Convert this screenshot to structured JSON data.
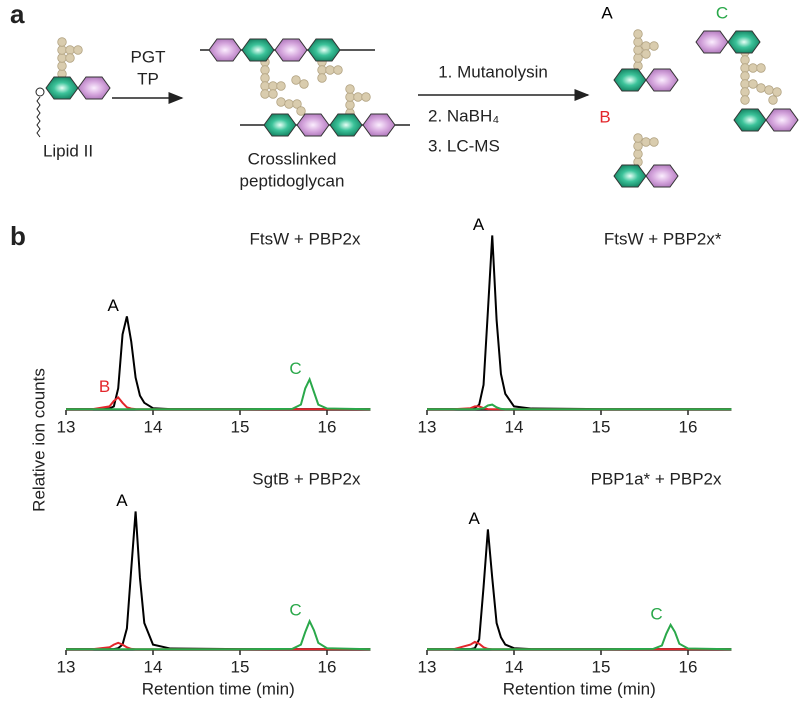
{
  "figure": {
    "panel_a": {
      "label": "a",
      "arrow1_top": "PGT",
      "arrow1_bottom": "TP",
      "lipid": "Lipid II",
      "product_line1": "Crosslinked",
      "product_line2": "peptidoglycan",
      "steps": [
        "1. Mutanolysin",
        "2. NaBH₄",
        "3. LC-MS"
      ],
      "fragments": [
        {
          "text": "A",
          "color": "#000000"
        },
        {
          "text": "C",
          "color": "#2aa84a"
        },
        {
          "text": "B",
          "color": "#e3262b"
        }
      ]
    },
    "panel_b": {
      "label": "b",
      "y_label": "Relative ion counts"
    }
  },
  "chart_data": [
    {
      "type": "line",
      "title": "FtsW + PBP2x",
      "xlim": [
        13,
        16.5
      ],
      "xticks": [
        13,
        14,
        15,
        16
      ],
      "ylim": [
        0,
        1
      ],
      "x": [
        13,
        13.3,
        13.5,
        13.55,
        13.6,
        13.65,
        13.7,
        13.75,
        13.8,
        13.85,
        13.9,
        14.0,
        14.2,
        15.0,
        15.6,
        15.7,
        15.75,
        15.8,
        15.85,
        15.9,
        16.0,
        16.5
      ],
      "series": [
        {
          "name": "A",
          "color": "#000000",
          "values": [
            0.005,
            0.005,
            0.008,
            0.02,
            0.12,
            0.42,
            0.52,
            0.38,
            0.18,
            0.08,
            0.04,
            0.01,
            0.005,
            0.005,
            0.005,
            0.005,
            0.005,
            0.005,
            0.005,
            0.005,
            0.005,
            0.005
          ]
        },
        {
          "name": "B",
          "color": "#e3262b",
          "values": [
            0.004,
            0.004,
            0.02,
            0.05,
            0.07,
            0.04,
            0.015,
            0.008,
            0.005,
            0.004,
            0.004,
            0.004,
            0.004,
            0.004,
            0.004,
            0.004,
            0.004,
            0.004,
            0.004,
            0.004,
            0.004,
            0.004
          ]
        },
        {
          "name": "C",
          "color": "#2aa84a",
          "values": [
            0.004,
            0.004,
            0.004,
            0.004,
            0.004,
            0.004,
            0.004,
            0.004,
            0.004,
            0.004,
            0.004,
            0.004,
            0.004,
            0.004,
            0.006,
            0.03,
            0.12,
            0.17,
            0.1,
            0.03,
            0.008,
            0.004
          ]
        }
      ]
    },
    {
      "type": "line",
      "title": "FtsW + PBP2x*",
      "xlim": [
        13,
        16.5
      ],
      "xticks": [
        13,
        14,
        15,
        16
      ],
      "ylim": [
        0,
        1
      ],
      "x": [
        13,
        13.3,
        13.5,
        13.55,
        13.6,
        13.65,
        13.7,
        13.75,
        13.8,
        13.85,
        13.9,
        14.0,
        14.2,
        15.0,
        15.6,
        15.7,
        15.75,
        15.8,
        15.85,
        15.9,
        16.0,
        16.5
      ],
      "series": [
        {
          "name": "A",
          "color": "#000000",
          "values": [
            0.005,
            0.005,
            0.005,
            0.01,
            0.03,
            0.14,
            0.55,
            0.97,
            0.5,
            0.2,
            0.09,
            0.02,
            0.008,
            0.005,
            0.005,
            0.005,
            0.005,
            0.005,
            0.005,
            0.005,
            0.005,
            0.005
          ]
        },
        {
          "color": "#e3262b",
          "values": [
            0.004,
            0.004,
            0.01,
            0.02,
            0.02,
            0.01,
            0.005,
            0.004,
            0.004,
            0.004,
            0.004,
            0.004,
            0.004,
            0.004,
            0.004,
            0.004,
            0.004,
            0.004,
            0.004,
            0.004,
            0.004,
            0.004
          ]
        },
        {
          "color": "#2aa84a",
          "values": [
            0.004,
            0.004,
            0.004,
            0.004,
            0.006,
            0.01,
            0.025,
            0.03,
            0.015,
            0.006,
            0.004,
            0.004,
            0.004,
            0.004,
            0.004,
            0.004,
            0.004,
            0.004,
            0.004,
            0.004,
            0.004,
            0.004
          ]
        }
      ]
    },
    {
      "type": "line",
      "title": "SgtB + PBP2x",
      "x_label": "Retention time (min)",
      "xlim": [
        13,
        16.5
      ],
      "xticks": [
        13,
        14,
        15,
        16
      ],
      "ylim": [
        0,
        1
      ],
      "x": [
        13,
        13.3,
        13.5,
        13.55,
        13.6,
        13.65,
        13.7,
        13.75,
        13.8,
        13.85,
        13.9,
        14.0,
        14.2,
        15.0,
        15.6,
        15.7,
        15.75,
        15.8,
        15.85,
        15.9,
        16.0,
        16.5
      ],
      "series": [
        {
          "name": "A",
          "color": "#000000",
          "values": [
            0.005,
            0.005,
            0.005,
            0.005,
            0.01,
            0.03,
            0.12,
            0.45,
            0.77,
            0.4,
            0.15,
            0.03,
            0.008,
            0.005,
            0.005,
            0.005,
            0.005,
            0.005,
            0.005,
            0.005,
            0.005,
            0.005
          ]
        },
        {
          "color": "#e3262b",
          "values": [
            0.004,
            0.004,
            0.015,
            0.03,
            0.04,
            0.03,
            0.015,
            0.006,
            0.004,
            0.004,
            0.004,
            0.004,
            0.004,
            0.004,
            0.004,
            0.004,
            0.004,
            0.004,
            0.004,
            0.004,
            0.004,
            0.004
          ]
        },
        {
          "name": "C",
          "color": "#2aa84a",
          "values": [
            0.004,
            0.004,
            0.004,
            0.004,
            0.004,
            0.004,
            0.004,
            0.004,
            0.004,
            0.004,
            0.004,
            0.004,
            0.004,
            0.004,
            0.006,
            0.03,
            0.1,
            0.16,
            0.11,
            0.04,
            0.01,
            0.004
          ]
        }
      ]
    },
    {
      "type": "line",
      "title": "PBP1a* + PBP2x",
      "x_label": "Retention time (min)",
      "xlim": [
        13,
        16.5
      ],
      "xticks": [
        13,
        14,
        15,
        16
      ],
      "ylim": [
        0,
        1
      ],
      "x": [
        13,
        13.3,
        13.5,
        13.55,
        13.6,
        13.65,
        13.7,
        13.75,
        13.8,
        13.85,
        13.9,
        14.0,
        14.2,
        15.0,
        15.6,
        15.7,
        15.75,
        15.8,
        15.85,
        15.9,
        16.0,
        16.5
      ],
      "series": [
        {
          "name": "A",
          "color": "#000000",
          "values": [
            0.005,
            0.005,
            0.005,
            0.01,
            0.06,
            0.35,
            0.67,
            0.4,
            0.15,
            0.07,
            0.03,
            0.01,
            0.005,
            0.005,
            0.005,
            0.005,
            0.005,
            0.005,
            0.005,
            0.005,
            0.005,
            0.005
          ]
        },
        {
          "color": "#e3262b",
          "values": [
            0.004,
            0.004,
            0.03,
            0.045,
            0.035,
            0.015,
            0.006,
            0.004,
            0.004,
            0.004,
            0.004,
            0.004,
            0.004,
            0.004,
            0.004,
            0.004,
            0.004,
            0.004,
            0.004,
            0.004,
            0.004,
            0.004
          ]
        },
        {
          "name": "C",
          "color": "#2aa84a",
          "values": [
            0.004,
            0.004,
            0.004,
            0.004,
            0.004,
            0.004,
            0.004,
            0.004,
            0.004,
            0.004,
            0.004,
            0.004,
            0.004,
            0.004,
            0.006,
            0.025,
            0.09,
            0.14,
            0.1,
            0.035,
            0.008,
            0.004
          ]
        }
      ]
    }
  ]
}
